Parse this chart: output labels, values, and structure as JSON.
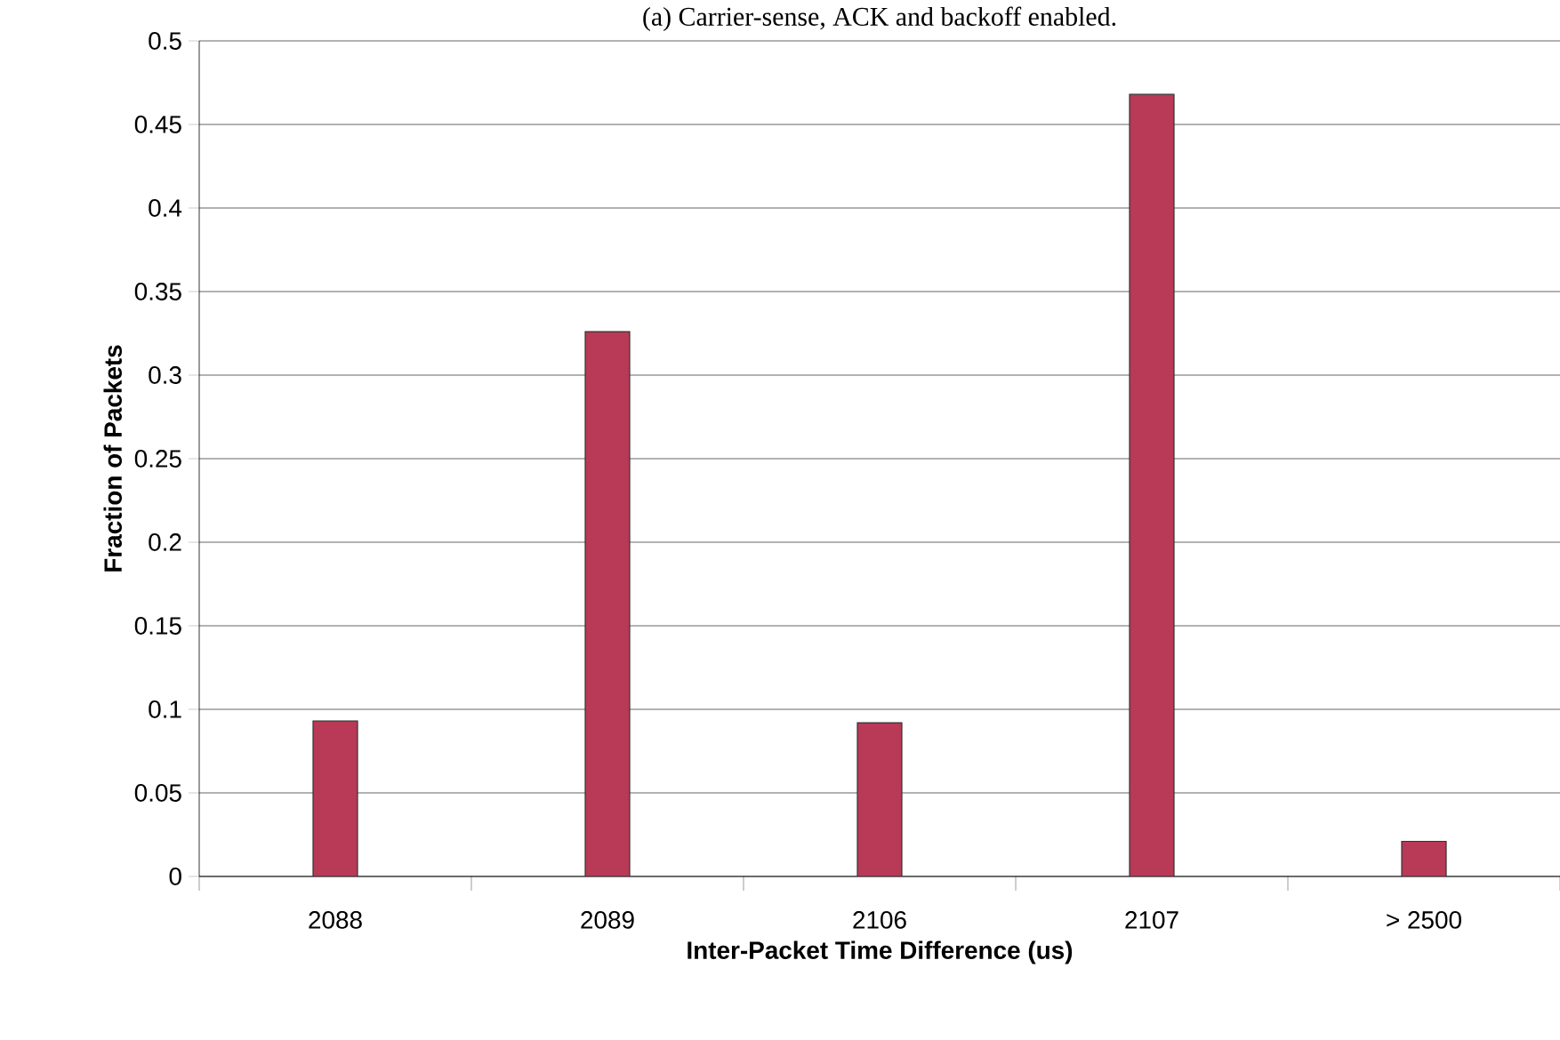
{
  "chart_data": {
    "type": "bar",
    "title": "(a) Carrier-sense, ACK and backoff enabled.",
    "xlabel": "Inter-Packet Time Difference (us)",
    "ylabel": "Fraction of Packets",
    "categories": [
      "2088",
      "2089",
      "2106",
      "2107",
      "> 2500"
    ],
    "values": [
      0.093,
      0.326,
      0.092,
      0.468,
      0.021
    ],
    "color": "#b83a56",
    "ylim": [
      0,
      0.5
    ],
    "yticks": [
      0,
      0.05,
      0.1,
      0.15,
      0.2,
      0.25,
      0.3,
      0.35,
      0.4,
      0.45,
      0.5
    ],
    "grid": "y"
  }
}
